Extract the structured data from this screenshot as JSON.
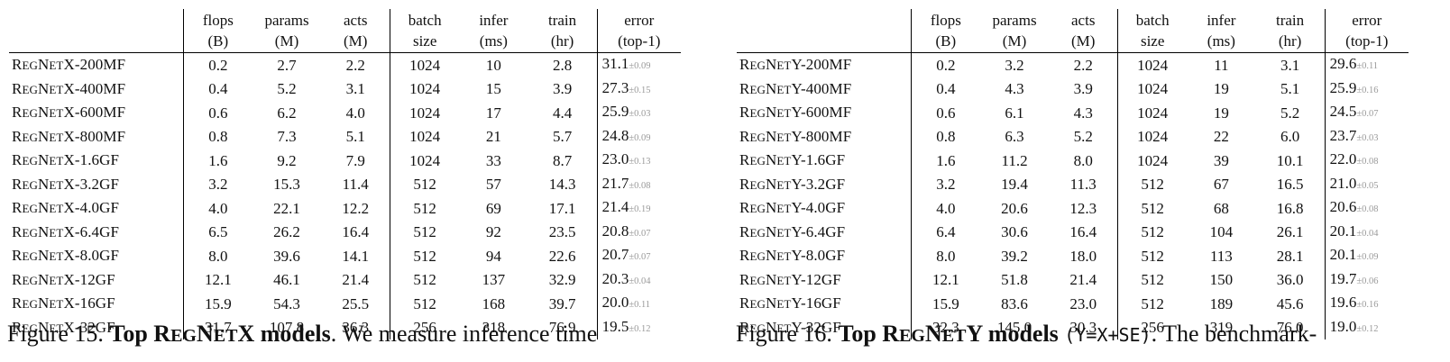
{
  "tables": [
    {
      "id": "x",
      "header": {
        "flops": [
          "flops",
          "(B)"
        ],
        "params": [
          "params",
          "(M)"
        ],
        "acts": [
          "acts",
          "(M)"
        ],
        "batch": [
          "batch",
          "size"
        ],
        "infer": [
          "infer",
          "(ms)"
        ],
        "train": [
          "train",
          "(hr)"
        ],
        "error": [
          "error",
          "(top-1)"
        ]
      },
      "rows": [
        {
          "prefix": "R",
          "sc1": "EG",
          "mid": "N",
          "sc2": "ET",
          "suffix": "X-200MF",
          "flops": "0.2",
          "params": "2.7",
          "acts": "2.2",
          "batch": "1024",
          "infer": "10",
          "train": "2.8",
          "error": "31.1",
          "std": "±0.09"
        },
        {
          "prefix": "R",
          "sc1": "EG",
          "mid": "N",
          "sc2": "ET",
          "suffix": "X-400MF",
          "flops": "0.4",
          "params": "5.2",
          "acts": "3.1",
          "batch": "1024",
          "infer": "15",
          "train": "3.9",
          "error": "27.3",
          "std": "±0.15"
        },
        {
          "prefix": "R",
          "sc1": "EG",
          "mid": "N",
          "sc2": "ET",
          "suffix": "X-600MF",
          "flops": "0.6",
          "params": "6.2",
          "acts": "4.0",
          "batch": "1024",
          "infer": "17",
          "train": "4.4",
          "error": "25.9",
          "std": "±0.03"
        },
        {
          "prefix": "R",
          "sc1": "EG",
          "mid": "N",
          "sc2": "ET",
          "suffix": "X-800MF",
          "flops": "0.8",
          "params": "7.3",
          "acts": "5.1",
          "batch": "1024",
          "infer": "21",
          "train": "5.7",
          "error": "24.8",
          "std": "±0.09"
        },
        {
          "prefix": "R",
          "sc1": "EG",
          "mid": "N",
          "sc2": "ET",
          "suffix": "X-1.6GF",
          "flops": "1.6",
          "params": "9.2",
          "acts": "7.9",
          "batch": "1024",
          "infer": "33",
          "train": "8.7",
          "error": "23.0",
          "std": "±0.13"
        },
        {
          "prefix": "R",
          "sc1": "EG",
          "mid": "N",
          "sc2": "ET",
          "suffix": "X-3.2GF",
          "flops": "3.2",
          "params": "15.3",
          "acts": "11.4",
          "batch": "512",
          "infer": "57",
          "train": "14.3",
          "error": "21.7",
          "std": "±0.08"
        },
        {
          "prefix": "R",
          "sc1": "EG",
          "mid": "N",
          "sc2": "ET",
          "suffix": "X-4.0GF",
          "flops": "4.0",
          "params": "22.1",
          "acts": "12.2",
          "batch": "512",
          "infer": "69",
          "train": "17.1",
          "error": "21.4",
          "std": "±0.19"
        },
        {
          "prefix": "R",
          "sc1": "EG",
          "mid": "N",
          "sc2": "ET",
          "suffix": "X-6.4GF",
          "flops": "6.5",
          "params": "26.2",
          "acts": "16.4",
          "batch": "512",
          "infer": "92",
          "train": "23.5",
          "error": "20.8",
          "std": "±0.07"
        },
        {
          "prefix": "R",
          "sc1": "EG",
          "mid": "N",
          "sc2": "ET",
          "suffix": "X-8.0GF",
          "flops": "8.0",
          "params": "39.6",
          "acts": "14.1",
          "batch": "512",
          "infer": "94",
          "train": "22.6",
          "error": "20.7",
          "std": "±0.07"
        },
        {
          "prefix": "R",
          "sc1": "EG",
          "mid": "N",
          "sc2": "ET",
          "suffix": "X-12GF",
          "flops": "12.1",
          "params": "46.1",
          "acts": "21.4",
          "batch": "512",
          "infer": "137",
          "train": "32.9",
          "error": "20.3",
          "std": "±0.04"
        },
        {
          "prefix": "R",
          "sc1": "EG",
          "mid": "N",
          "sc2": "ET",
          "suffix": "X-16GF",
          "flops": "15.9",
          "params": "54.3",
          "acts": "25.5",
          "batch": "512",
          "infer": "168",
          "train": "39.7",
          "error": "20.0",
          "std": "±0.11"
        },
        {
          "prefix": "R",
          "sc1": "EG",
          "mid": "N",
          "sc2": "ET",
          "suffix": "X-32GF",
          "flops": "31.7",
          "params": "107.8",
          "acts": "36.3",
          "batch": "256",
          "infer": "318",
          "train": "76.9",
          "error": "19.5",
          "std": "±0.12"
        }
      ]
    },
    {
      "id": "y",
      "header": {
        "flops": [
          "flops",
          "(B)"
        ],
        "params": [
          "params",
          "(M)"
        ],
        "acts": [
          "acts",
          "(M)"
        ],
        "batch": [
          "batch",
          "size"
        ],
        "infer": [
          "infer",
          "(ms)"
        ],
        "train": [
          "train",
          "(hr)"
        ],
        "error": [
          "error",
          "(top-1)"
        ]
      },
      "rows": [
        {
          "prefix": "R",
          "sc1": "EG",
          "mid": "N",
          "sc2": "ET",
          "suffix": "Y-200MF",
          "flops": "0.2",
          "params": "3.2",
          "acts": "2.2",
          "batch": "1024",
          "infer": "11",
          "train": "3.1",
          "error": "29.6",
          "std": "±0.11"
        },
        {
          "prefix": "R",
          "sc1": "EG",
          "mid": "N",
          "sc2": "ET",
          "suffix": "Y-400MF",
          "flops": "0.4",
          "params": "4.3",
          "acts": "3.9",
          "batch": "1024",
          "infer": "19",
          "train": "5.1",
          "error": "25.9",
          "std": "±0.16"
        },
        {
          "prefix": "R",
          "sc1": "EG",
          "mid": "N",
          "sc2": "ET",
          "suffix": "Y-600MF",
          "flops": "0.6",
          "params": "6.1",
          "acts": "4.3",
          "batch": "1024",
          "infer": "19",
          "train": "5.2",
          "error": "24.5",
          "std": "±0.07"
        },
        {
          "prefix": "R",
          "sc1": "EG",
          "mid": "N",
          "sc2": "ET",
          "suffix": "Y-800MF",
          "flops": "0.8",
          "params": "6.3",
          "acts": "5.2",
          "batch": "1024",
          "infer": "22",
          "train": "6.0",
          "error": "23.7",
          "std": "±0.03"
        },
        {
          "prefix": "R",
          "sc1": "EG",
          "mid": "N",
          "sc2": "ET",
          "suffix": "Y-1.6GF",
          "flops": "1.6",
          "params": "11.2",
          "acts": "8.0",
          "batch": "1024",
          "infer": "39",
          "train": "10.1",
          "error": "22.0",
          "std": "±0.08"
        },
        {
          "prefix": "R",
          "sc1": "EG",
          "mid": "N",
          "sc2": "ET",
          "suffix": "Y-3.2GF",
          "flops": "3.2",
          "params": "19.4",
          "acts": "11.3",
          "batch": "512",
          "infer": "67",
          "train": "16.5",
          "error": "21.0",
          "std": "±0.05"
        },
        {
          "prefix": "R",
          "sc1": "EG",
          "mid": "N",
          "sc2": "ET",
          "suffix": "Y-4.0GF",
          "flops": "4.0",
          "params": "20.6",
          "acts": "12.3",
          "batch": "512",
          "infer": "68",
          "train": "16.8",
          "error": "20.6",
          "std": "±0.08"
        },
        {
          "prefix": "R",
          "sc1": "EG",
          "mid": "N",
          "sc2": "ET",
          "suffix": "Y-6.4GF",
          "flops": "6.4",
          "params": "30.6",
          "acts": "16.4",
          "batch": "512",
          "infer": "104",
          "train": "26.1",
          "error": "20.1",
          "std": "±0.04"
        },
        {
          "prefix": "R",
          "sc1": "EG",
          "mid": "N",
          "sc2": "ET",
          "suffix": "Y-8.0GF",
          "flops": "8.0",
          "params": "39.2",
          "acts": "18.0",
          "batch": "512",
          "infer": "113",
          "train": "28.1",
          "error": "20.1",
          "std": "±0.09"
        },
        {
          "prefix": "R",
          "sc1": "EG",
          "mid": "N",
          "sc2": "ET",
          "suffix": "Y-12GF",
          "flops": "12.1",
          "params": "51.8",
          "acts": "21.4",
          "batch": "512",
          "infer": "150",
          "train": "36.0",
          "error": "19.7",
          "std": "±0.06"
        },
        {
          "prefix": "R",
          "sc1": "EG",
          "mid": "N",
          "sc2": "ET",
          "suffix": "Y-16GF",
          "flops": "15.9",
          "params": "83.6",
          "acts": "23.0",
          "batch": "512",
          "infer": "189",
          "train": "45.6",
          "error": "19.6",
          "std": "±0.16"
        },
        {
          "prefix": "R",
          "sc1": "EG",
          "mid": "N",
          "sc2": "ET",
          "suffix": "Y-32GF",
          "flops": "32.3",
          "params": "145.0",
          "acts": "30.3",
          "batch": "256",
          "infer": "319",
          "train": "76.0",
          "error": "19.0",
          "std": "±0.12"
        }
      ]
    }
  ],
  "captions": {
    "x": {
      "label": "Figure 15.",
      "bold_prefix": "Top R",
      "bold_sc1": "EG",
      "bold_mid": "N",
      "bold_sc2": "ET",
      "bold_suffix": "X models",
      "rest": ". We measure inference time"
    },
    "y": {
      "label": "Figure 16.",
      "bold_prefix": "Top R",
      "bold_sc1": "EG",
      "bold_mid": "N",
      "bold_sc2": "ET",
      "bold_suffix": "Y models",
      "code": "(Y=X+SE)",
      "rest": ". The benchmark-"
    }
  }
}
